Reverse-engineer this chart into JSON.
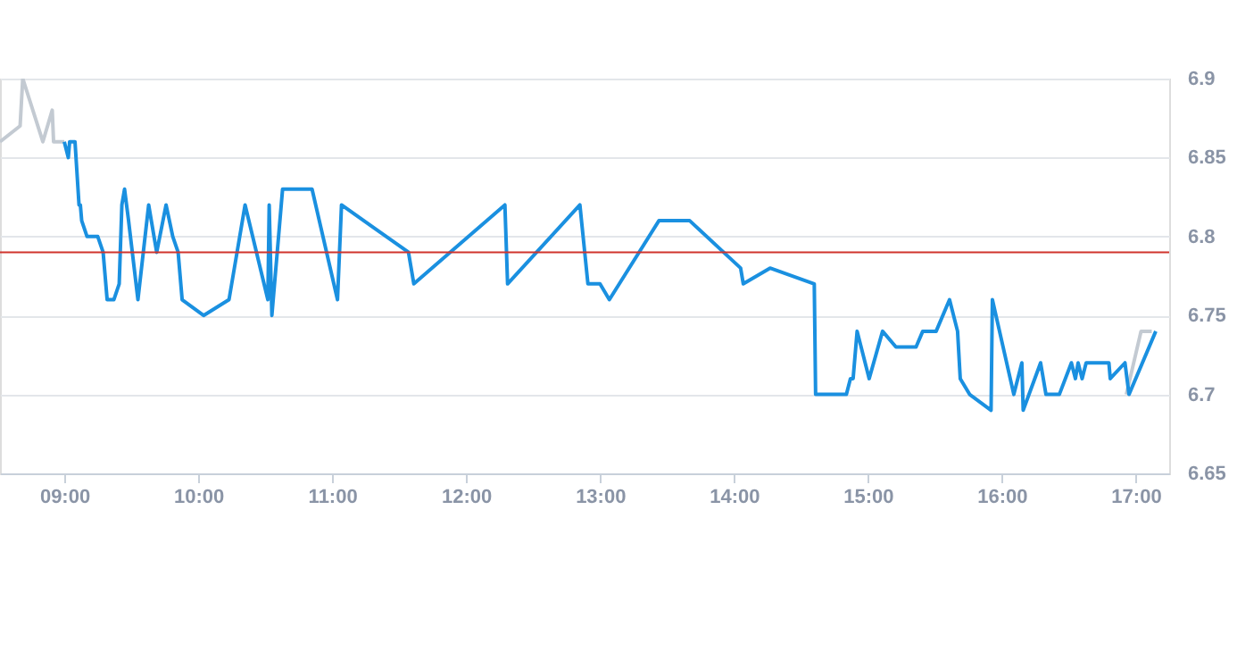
{
  "chart_data": {
    "type": "line",
    "xlim": [
      8.52,
      17.25
    ],
    "ylim": [
      6.65,
      6.9
    ],
    "xticks": [
      {
        "value": 9,
        "label": "09:00"
      },
      {
        "value": 10,
        "label": "10:00"
      },
      {
        "value": 11,
        "label": "11:00"
      },
      {
        "value": 12,
        "label": "12:00"
      },
      {
        "value": 13,
        "label": "13:00"
      },
      {
        "value": 14,
        "label": "14:00"
      },
      {
        "value": 15,
        "label": "15:00"
      },
      {
        "value": 16,
        "label": "16:00"
      },
      {
        "value": 17,
        "label": "17:00"
      }
    ],
    "yticks": [
      6.65,
      6.7,
      6.75,
      6.8,
      6.85,
      6.9
    ],
    "grid": "y",
    "marker": "none",
    "line_style": "solid",
    "ref_lines": [
      {
        "axis": "y",
        "value": 6.79,
        "color": "#d0342c"
      }
    ],
    "series": [
      {
        "color": "#c3cad2",
        "x": [
          8.52,
          8.67,
          8.69,
          8.84,
          8.91,
          8.92,
          9.0
        ],
        "values": [
          6.86,
          6.87,
          6.9,
          6.86,
          6.88,
          6.86,
          6.86
        ]
      },
      {
        "color": "#c3cad2",
        "x": [
          16.93,
          17.04,
          17.12
        ],
        "values": [
          6.7,
          6.74,
          6.74
        ]
      },
      {
        "color": "#1a90e0",
        "x": [
          9.0,
          9.03,
          9.04,
          9.08,
          9.11,
          9.12,
          9.13,
          9.17,
          9.25,
          9.29,
          9.32,
          9.37,
          9.41,
          9.43,
          9.45,
          9.48,
          9.55,
          9.63,
          9.67,
          9.69,
          9.76,
          9.81,
          9.85,
          9.88,
          10.04,
          10.23,
          10.35,
          10.52,
          10.53,
          10.55,
          10.63,
          10.85,
          11.04,
          11.07,
          11.57,
          11.61,
          12.29,
          12.31,
          12.85,
          12.91,
          13.0,
          13.07,
          13.44,
          13.67,
          14.05,
          14.07,
          14.27,
          14.6,
          14.61,
          14.84,
          14.87,
          14.89,
          14.92,
          15.01,
          15.11,
          15.21,
          15.36,
          15.41,
          15.51,
          15.61,
          15.67,
          15.69,
          15.76,
          15.92,
          15.93,
          16.09,
          16.15,
          16.16,
          16.29,
          16.33,
          16.43,
          16.52,
          16.55,
          16.57,
          16.6,
          16.63,
          16.8,
          16.81,
          16.92,
          16.95,
          17.15
        ],
        "values": [
          6.86,
          6.85,
          6.86,
          6.86,
          6.82,
          6.82,
          6.81,
          6.8,
          6.8,
          6.79,
          6.76,
          6.76,
          6.77,
          6.82,
          6.83,
          6.81,
          6.76,
          6.82,
          6.8,
          6.79,
          6.82,
          6.8,
          6.79,
          6.76,
          6.75,
          6.76,
          6.82,
          6.76,
          6.82,
          6.75,
          6.83,
          6.83,
          6.76,
          6.82,
          6.79,
          6.77,
          6.82,
          6.77,
          6.82,
          6.77,
          6.77,
          6.76,
          6.81,
          6.81,
          6.78,
          6.77,
          6.78,
          6.77,
          6.7,
          6.7,
          6.71,
          6.71,
          6.74,
          6.71,
          6.74,
          6.73,
          6.73,
          6.74,
          6.74,
          6.76,
          6.74,
          6.71,
          6.7,
          6.69,
          6.76,
          6.7,
          6.72,
          6.69,
          6.72,
          6.7,
          6.7,
          6.72,
          6.71,
          6.72,
          6.71,
          6.72,
          6.72,
          6.71,
          6.72,
          6.7,
          6.74
        ]
      }
    ]
  }
}
